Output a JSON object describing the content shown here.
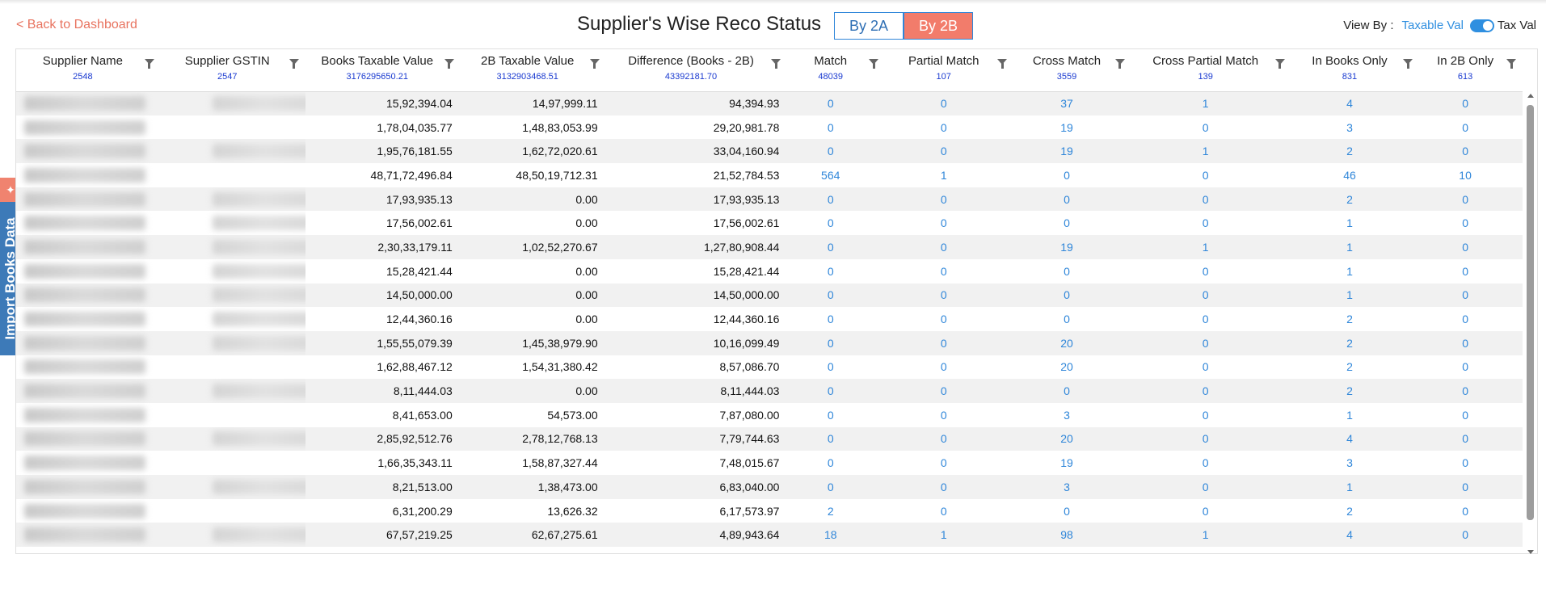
{
  "back_link": "< Back to Dashboard",
  "title": "Supplier's Wise Reco Status",
  "toggle": {
    "by2a": "By 2A",
    "by2b": "By 2B",
    "selected": "By 2B"
  },
  "view_by": {
    "label": "View By :",
    "option_left": "Taxable Val",
    "option_right": "Tax Val"
  },
  "side_tab": {
    "label": "Import Books Data",
    "pin_icon": "pin-icon"
  },
  "accent_color": "#f27c6b",
  "link_color": "#2f86d9",
  "columns": [
    {
      "name": "Supplier Name",
      "total": "2548"
    },
    {
      "name": "Supplier GSTIN",
      "total": "2547"
    },
    {
      "name": "Books Taxable Value",
      "total": "3176295650.21"
    },
    {
      "name": "2B Taxable Value",
      "total": "3132903468.51"
    },
    {
      "name": "Difference (Books - 2B)",
      "total": "43392181.70"
    },
    {
      "name": "Match",
      "total": "48039"
    },
    {
      "name": "Partial Match",
      "total": "107"
    },
    {
      "name": "Cross Match",
      "total": "3559"
    },
    {
      "name": "Cross Partial Match",
      "total": "139"
    },
    {
      "name": "In Books Only",
      "total": "831"
    },
    {
      "name": "In 2B Only",
      "total": "613"
    }
  ],
  "rows": [
    {
      "books": "15,92,394.04",
      "b2": "14,97,999.11",
      "diff": "94,394.93",
      "match": "0",
      "partial": "0",
      "cross": "37",
      "cross_partial": "1",
      "books_only": "4",
      "b2_only": "0"
    },
    {
      "books": "1,78,04,035.77",
      "b2": "1,48,83,053.99",
      "diff": "29,20,981.78",
      "match": "0",
      "partial": "0",
      "cross": "19",
      "cross_partial": "0",
      "books_only": "3",
      "b2_only": "0"
    },
    {
      "books": "1,95,76,181.55",
      "b2": "1,62,72,020.61",
      "diff": "33,04,160.94",
      "match": "0",
      "partial": "0",
      "cross": "19",
      "cross_partial": "1",
      "books_only": "2",
      "b2_only": "0"
    },
    {
      "books": "48,71,72,496.84",
      "b2": "48,50,19,712.31",
      "diff": "21,52,784.53",
      "match": "564",
      "partial": "1",
      "cross": "0",
      "cross_partial": "0",
      "books_only": "46",
      "b2_only": "10"
    },
    {
      "books": "17,93,935.13",
      "b2": "0.00",
      "diff": "17,93,935.13",
      "match": "0",
      "partial": "0",
      "cross": "0",
      "cross_partial": "0",
      "books_only": "2",
      "b2_only": "0"
    },
    {
      "books": "17,56,002.61",
      "b2": "0.00",
      "diff": "17,56,002.61",
      "match": "0",
      "partial": "0",
      "cross": "0",
      "cross_partial": "0",
      "books_only": "1",
      "b2_only": "0"
    },
    {
      "books": "2,30,33,179.11",
      "b2": "1,02,52,270.67",
      "diff": "1,27,80,908.44",
      "match": "0",
      "partial": "0",
      "cross": "19",
      "cross_partial": "1",
      "books_only": "1",
      "b2_only": "0"
    },
    {
      "books": "15,28,421.44",
      "b2": "0.00",
      "diff": "15,28,421.44",
      "match": "0",
      "partial": "0",
      "cross": "0",
      "cross_partial": "0",
      "books_only": "1",
      "b2_only": "0"
    },
    {
      "books": "14,50,000.00",
      "b2": "0.00",
      "diff": "14,50,000.00",
      "match": "0",
      "partial": "0",
      "cross": "0",
      "cross_partial": "0",
      "books_only": "1",
      "b2_only": "0"
    },
    {
      "books": "12,44,360.16",
      "b2": "0.00",
      "diff": "12,44,360.16",
      "match": "0",
      "partial": "0",
      "cross": "0",
      "cross_partial": "0",
      "books_only": "2",
      "b2_only": "0"
    },
    {
      "books": "1,55,55,079.39",
      "b2": "1,45,38,979.90",
      "diff": "10,16,099.49",
      "match": "0",
      "partial": "0",
      "cross": "20",
      "cross_partial": "0",
      "books_only": "2",
      "b2_only": "0"
    },
    {
      "books": "1,62,88,467.12",
      "b2": "1,54,31,380.42",
      "diff": "8,57,086.70",
      "match": "0",
      "partial": "0",
      "cross": "20",
      "cross_partial": "0",
      "books_only": "2",
      "b2_only": "0"
    },
    {
      "books": "8,11,444.03",
      "b2": "0.00",
      "diff": "8,11,444.03",
      "match": "0",
      "partial": "0",
      "cross": "0",
      "cross_partial": "0",
      "books_only": "2",
      "b2_only": "0"
    },
    {
      "books": "8,41,653.00",
      "b2": "54,573.00",
      "diff": "7,87,080.00",
      "match": "0",
      "partial": "0",
      "cross": "3",
      "cross_partial": "0",
      "books_only": "1",
      "b2_only": "0"
    },
    {
      "books": "2,85,92,512.76",
      "b2": "2,78,12,768.13",
      "diff": "7,79,744.63",
      "match": "0",
      "partial": "0",
      "cross": "20",
      "cross_partial": "0",
      "books_only": "4",
      "b2_only": "0"
    },
    {
      "books": "1,66,35,343.11",
      "b2": "1,58,87,327.44",
      "diff": "7,48,015.67",
      "match": "0",
      "partial": "0",
      "cross": "19",
      "cross_partial": "0",
      "books_only": "3",
      "b2_only": "0"
    },
    {
      "books": "8,21,513.00",
      "b2": "1,38,473.00",
      "diff": "6,83,040.00",
      "match": "0",
      "partial": "0",
      "cross": "3",
      "cross_partial": "0",
      "books_only": "1",
      "b2_only": "0"
    },
    {
      "books": "6,31,200.29",
      "b2": "13,626.32",
      "diff": "6,17,573.97",
      "match": "2",
      "partial": "0",
      "cross": "0",
      "cross_partial": "0",
      "books_only": "2",
      "b2_only": "0"
    },
    {
      "books": "67,57,219.25",
      "b2": "62,67,275.61",
      "diff": "4,89,943.64",
      "match": "18",
      "partial": "1",
      "cross": "98",
      "cross_partial": "1",
      "books_only": "4",
      "b2_only": "0"
    }
  ]
}
